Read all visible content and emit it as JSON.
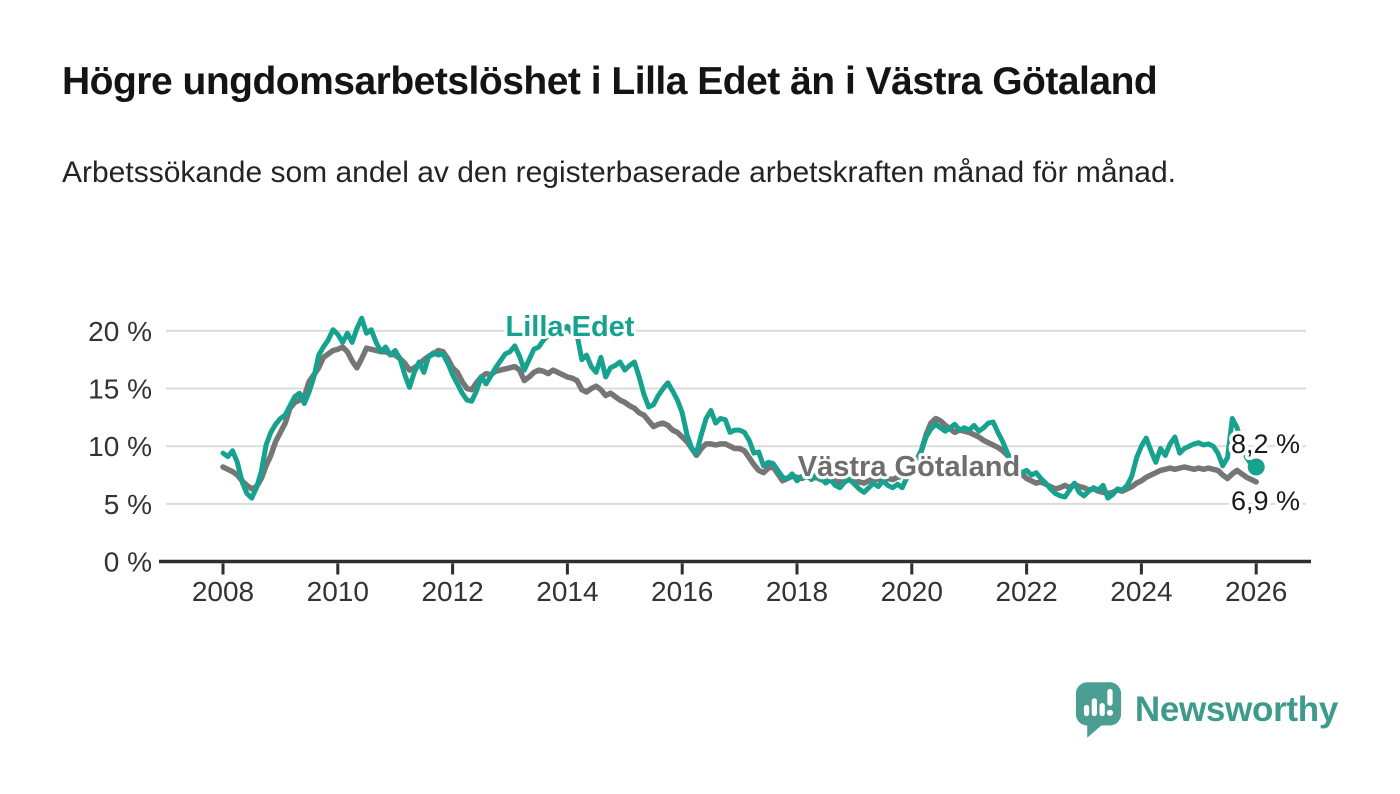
{
  "header": {
    "title": "Högre ungdomsarbetslöshet i Lilla Edet än i Västra Götaland",
    "subtitle": "Arbetssökande som andel av den registerbaserade arbetskraften månad för månad."
  },
  "colors": {
    "lilla_edet": "#17A28F",
    "vastra_gotaland": "#767676",
    "vastra_label": "#6E6E6E",
    "grid": "#DBDBDB",
    "axis": "#2E2E2E",
    "axis_text": "#333333",
    "end_label_text": "#1A1A1A",
    "logo_mark": "#4A9E92",
    "logo_text": "#3E9A8D",
    "background": "#FFFFFF"
  },
  "chart_data": {
    "type": "line",
    "x_unit": "month",
    "x_start_year": 2008,
    "x_end_label": "2026-01",
    "ylim": [
      0,
      22
    ],
    "grid": "horizontal",
    "legend_position": "inline-labels",
    "y_ticks": [
      0,
      5,
      10,
      15,
      20
    ],
    "y_tick_labels": [
      "0 %",
      "5 %",
      "10 %",
      "15 %",
      "20 %"
    ],
    "x_tick_years": [
      2008,
      2010,
      2012,
      2014,
      2016,
      2018,
      2020,
      2022,
      2024,
      2026
    ],
    "x_tick_labels": [
      "2008",
      "2010",
      "2012",
      "2014",
      "2016",
      "2018",
      "2020",
      "2022",
      "2024",
      "2026"
    ],
    "series": [
      {
        "name": "Lilla Edet",
        "color": "#17A28F",
        "end_label": "8,2 %",
        "end_dot": true,
        "values": [
          9.4,
          9.1,
          9.6,
          8.6,
          6.9,
          5.9,
          5.5,
          6.4,
          7.8,
          10.1,
          11.2,
          11.9,
          12.4,
          12.7,
          13.5,
          14.3,
          14.6,
          13.7,
          14.7,
          16.0,
          17.9,
          18.6,
          19.2,
          20.1,
          19.7,
          19.0,
          19.8,
          19.0,
          20.2,
          21.1,
          19.8,
          20.1,
          19.0,
          18.2,
          18.6,
          17.9,
          18.3,
          17.6,
          16.2,
          15.1,
          16.4,
          17.3,
          16.4,
          17.8,
          18.1,
          17.9,
          18.0,
          17.2,
          16.2,
          15.4,
          14.6,
          14.0,
          13.9,
          14.8,
          16.0,
          15.4,
          16.1,
          16.8,
          17.4,
          18.0,
          18.2,
          18.7,
          17.8,
          16.6,
          17.5,
          18.4,
          18.6,
          19.2,
          19.6,
          19.9,
          20.3,
          20.1,
          20.4,
          19.8,
          19.7,
          17.5,
          17.9,
          16.9,
          16.4,
          17.7,
          16.0,
          16.8,
          17.0,
          17.3,
          16.6,
          17.0,
          17.3,
          16.0,
          14.5,
          13.4,
          13.6,
          14.4,
          15.0,
          15.5,
          14.8,
          14.0,
          12.9,
          11.0,
          9.8,
          9.4,
          11.0,
          12.4,
          13.1,
          12.0,
          12.4,
          12.3,
          11.2,
          11.4,
          11.4,
          11.2,
          10.5,
          9.4,
          9.5,
          8.3,
          8.6,
          8.5,
          7.9,
          7.3,
          7.2,
          7.6,
          7.0,
          7.4,
          7.6,
          7.1,
          7.5,
          7.2,
          6.8,
          7.1,
          6.6,
          6.4,
          6.9,
          7.1,
          6.7,
          6.3,
          6.0,
          6.4,
          6.8,
          6.5,
          7.0,
          6.6,
          6.4,
          6.7,
          6.4,
          7.3,
          7.8,
          8.5,
          9.6,
          10.8,
          11.5,
          11.9,
          11.6,
          11.3,
          11.6,
          11.9,
          11.4,
          11.6,
          11.4,
          11.8,
          11.3,
          11.6,
          12.0,
          12.1,
          11.2,
          10.4,
          9.4,
          8.6,
          8.0,
          7.7,
          7.9,
          7.5,
          7.7,
          7.2,
          6.8,
          6.3,
          5.9,
          5.7,
          5.6,
          6.2,
          6.8,
          6.0,
          5.7,
          6.1,
          6.4,
          6.2,
          6.6,
          5.5,
          5.8,
          6.3,
          6.2,
          6.6,
          7.4,
          9.0,
          10.0,
          10.7,
          9.6,
          8.6,
          9.8,
          9.2,
          10.2,
          10.8,
          9.4,
          9.8,
          10.0,
          10.2,
          10.3,
          10.1,
          10.2,
          10.0,
          9.4,
          8.3,
          9.0,
          12.4,
          11.6,
          10.2,
          9.0,
          8.4,
          8.2
        ]
      },
      {
        "name": "Västra Götaland",
        "color": "#767676",
        "end_label": "6,9 %",
        "end_dot": false,
        "values": [
          8.2,
          8.0,
          7.8,
          7.5,
          7.0,
          6.6,
          6.3,
          6.5,
          7.2,
          8.3,
          9.2,
          10.4,
          11.2,
          12.0,
          13.3,
          13.8,
          14.0,
          14.3,
          15.6,
          16.2,
          16.8,
          17.7,
          18.0,
          18.3,
          18.4,
          18.6,
          18.2,
          17.4,
          16.8,
          17.6,
          18.5,
          18.4,
          18.3,
          18.2,
          18.2,
          18.0,
          17.9,
          17.6,
          17.2,
          16.6,
          16.8,
          17.1,
          17.5,
          17.8,
          18.0,
          18.3,
          18.2,
          17.6,
          16.8,
          16.4,
          15.6,
          15.0,
          14.9,
          15.5,
          16.0,
          16.3,
          16.2,
          16.5,
          16.6,
          16.7,
          16.8,
          16.9,
          16.6,
          15.7,
          16.0,
          16.4,
          16.6,
          16.5,
          16.3,
          16.6,
          16.4,
          16.2,
          16.0,
          15.9,
          15.7,
          14.9,
          14.7,
          15.0,
          15.2,
          14.9,
          14.4,
          14.6,
          14.3,
          14.0,
          13.8,
          13.5,
          13.3,
          12.9,
          12.7,
          12.2,
          11.7,
          11.9,
          12.0,
          11.8,
          11.4,
          11.2,
          10.8,
          10.4,
          9.8,
          9.2,
          9.8,
          10.2,
          10.2,
          10.1,
          10.2,
          10.2,
          10.0,
          9.8,
          9.8,
          9.6,
          9.0,
          8.4,
          7.9,
          7.7,
          8.1,
          8.2,
          7.6,
          7.0,
          7.2,
          7.4,
          7.3,
          7.2,
          7.4,
          7.2,
          7.3,
          7.1,
          7.0,
          7.2,
          7.1,
          6.9,
          7.0,
          7.2,
          7.1,
          6.9,
          6.8,
          7.0,
          7.2,
          7.1,
          7.0,
          7.2,
          7.1,
          7.3,
          7.4,
          7.8,
          8.3,
          8.8,
          9.6,
          11.0,
          12.0,
          12.4,
          12.2,
          11.8,
          11.5,
          11.2,
          11.4,
          11.3,
          11.2,
          11.0,
          10.8,
          10.5,
          10.3,
          10.1,
          9.9,
          9.6,
          9.2,
          8.6,
          8.0,
          7.6,
          7.2,
          7.0,
          6.8,
          6.9,
          6.7,
          6.5,
          6.3,
          6.4,
          6.6,
          6.4,
          6.7,
          6.5,
          6.4,
          6.2,
          6.3,
          6.1,
          6.0,
          5.9,
          6.0,
          6.2,
          6.1,
          6.3,
          6.5,
          6.8,
          7.0,
          7.3,
          7.5,
          7.7,
          7.9,
          8.0,
          8.1,
          8.0,
          8.1,
          8.2,
          8.1,
          8.0,
          8.1,
          8.0,
          8.1,
          8.0,
          7.9,
          7.5,
          7.2,
          7.6,
          7.9,
          7.6,
          7.3,
          7.1,
          6.9
        ]
      }
    ]
  },
  "footer": {
    "brand": "Newsworthy"
  }
}
